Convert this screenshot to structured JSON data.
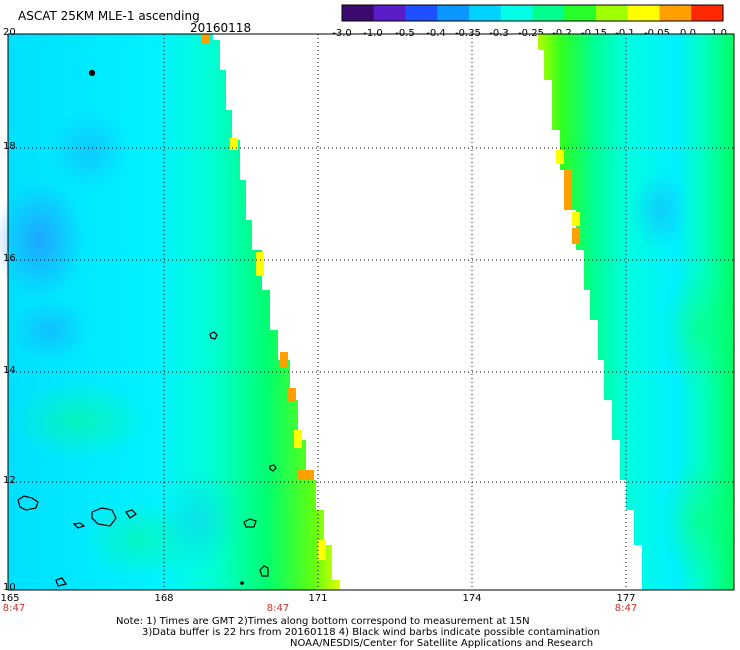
{
  "header": {
    "title": "ASCAT 25KM MLE-1 ascending",
    "date": "20160118"
  },
  "colorbar": {
    "ticks": [
      "-3.0",
      "-1.0",
      "-0.5",
      "-0.4",
      "-0.35",
      "-0.3",
      "-0.25",
      "-0.2",
      "-0.15",
      "-0.1",
      "-0.05",
      "0.0",
      "1.0"
    ],
    "colors": [
      "#000000",
      "#3c0a6e",
      "#5a1ec8",
      "#1e50ff",
      "#0a96ff",
      "#00d2ff",
      "#00ffe6",
      "#00ff8c",
      "#28ff28",
      "#a0ff00",
      "#ffff00",
      "#ffa000",
      "#ff2800"
    ]
  },
  "map": {
    "lat_labels": [
      "20",
      "18",
      "16",
      "14",
      "12",
      "10"
    ],
    "lon_labels": [
      "165",
      "168",
      "171",
      "174",
      "177"
    ],
    "time_labels": [
      "8:47",
      "8:47",
      "8:47"
    ]
  },
  "footer": {
    "line1": "Note: 1) Times are GMT 2)Times along bottom correspond to measurement at 15N",
    "line2": "3)Data buffer is 22 hrs from 20160118 4) Black wind barbs indicate possible contamination",
    "line3": "NOAA/NESDIS/Center for Satellite Applications and Research"
  }
}
